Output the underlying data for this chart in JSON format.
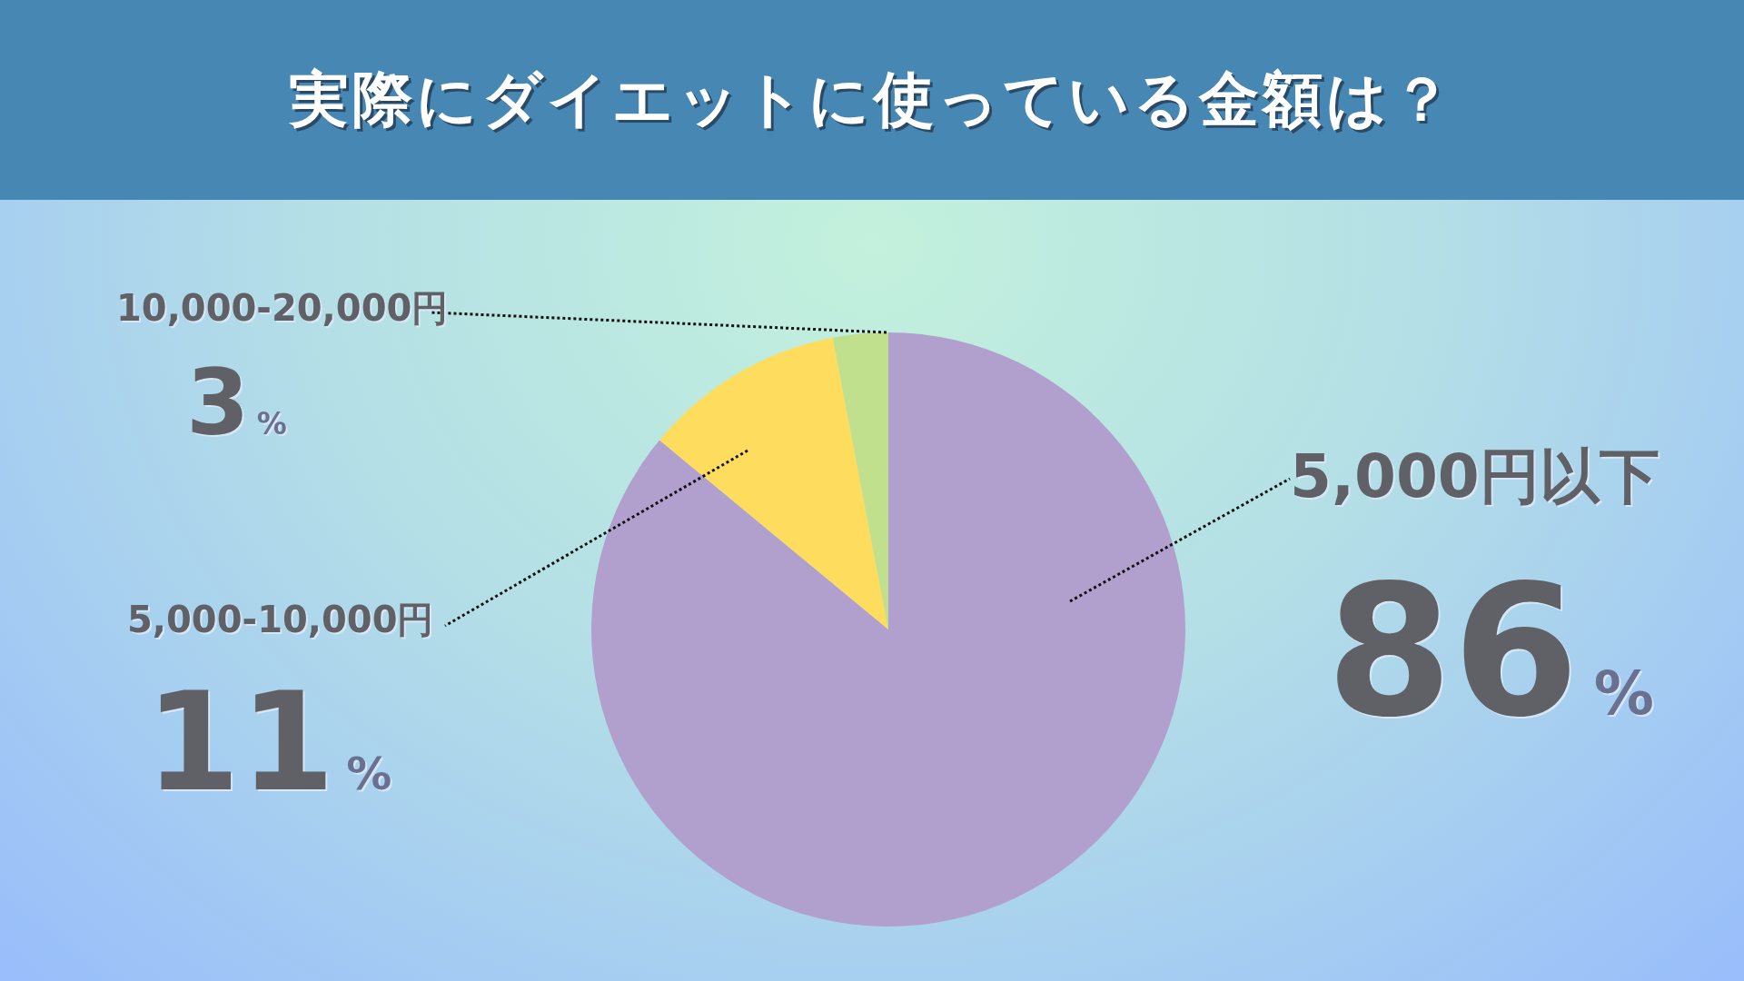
{
  "chart_data": {
    "type": "pie",
    "title": "実際にダイエットに使っている金額は？",
    "categories": [
      "5,000円以下",
      "5,000-10,000円",
      "10,000-20,000円"
    ],
    "values": [
      86,
      11,
      3
    ],
    "value_labels": [
      "86%",
      "11%",
      "3%"
    ],
    "colors": [
      "#b19fcd",
      "#fedd5e",
      "#c1e08e"
    ],
    "legend": false
  }
}
